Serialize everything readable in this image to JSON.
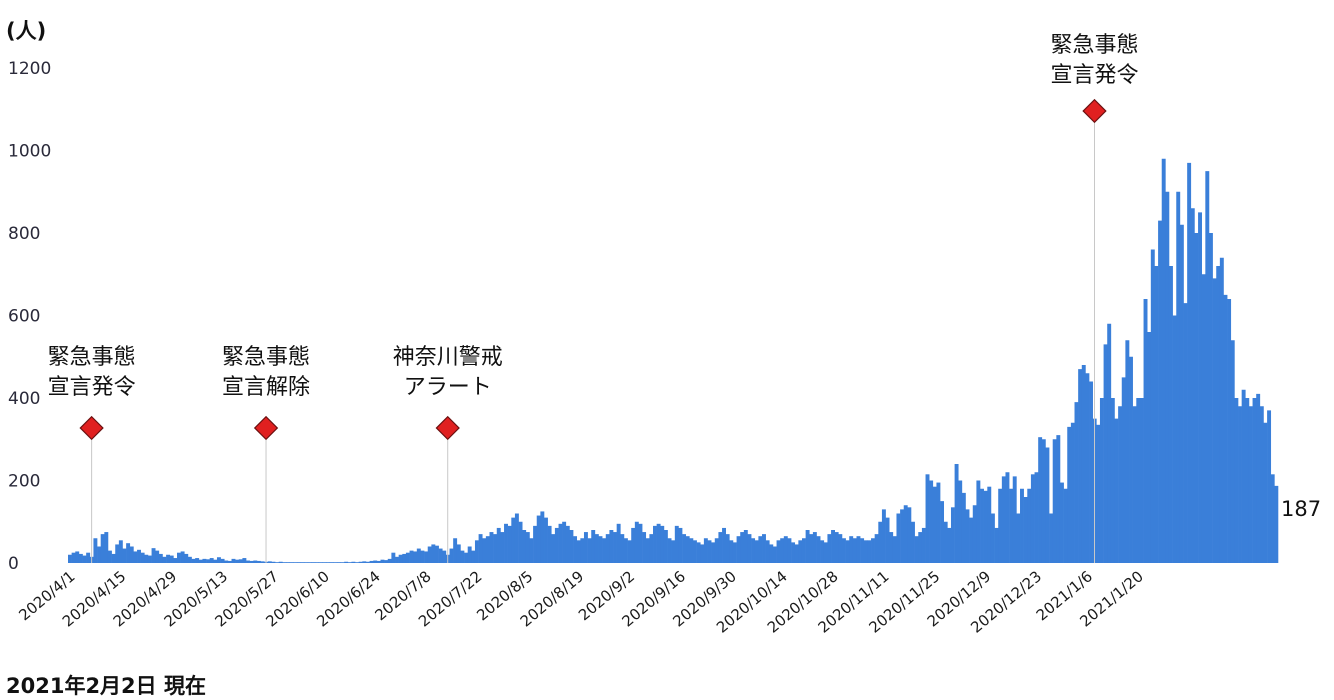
{
  "chart_data": {
    "type": "bar",
    "ylabel": "(人)",
    "ylim": [
      0,
      1200
    ],
    "yticks": [
      0,
      200,
      400,
      600,
      800,
      1000,
      1200
    ],
    "grid": false,
    "x_start": "2020/4/1",
    "x_end": "2021/2/2",
    "x_tick_labels": [
      "2020/4/1",
      "2020/4/15",
      "2020/4/29",
      "2020/5/13",
      "2020/5/27",
      "2020/6/10",
      "2020/6/24",
      "2020/7/8",
      "2020/7/22",
      "2020/8/5",
      "2020/8/19",
      "2020/9/2",
      "2020/9/16",
      "2020/9/30",
      "2020/10/14",
      "2020/10/28",
      "2020/11/11",
      "2020/11/25",
      "2020/12/9",
      "2020/12/23",
      "2021/1/6",
      "2021/1/20"
    ],
    "bar_color": "#3a7fd9",
    "marker_color": "#e02020",
    "values": [
      20,
      25,
      28,
      22,
      18,
      25,
      15,
      60,
      40,
      70,
      75,
      30,
      22,
      45,
      55,
      35,
      48,
      40,
      28,
      32,
      25,
      20,
      18,
      36,
      30,
      22,
      15,
      20,
      18,
      12,
      25,
      28,
      22,
      15,
      10,
      12,
      8,
      10,
      9,
      12,
      8,
      14,
      10,
      6,
      5,
      10,
      8,
      9,
      12,
      6,
      5,
      6,
      5,
      4,
      3,
      4,
      3,
      2,
      3,
      2,
      2,
      2,
      1,
      2,
      2,
      1,
      1,
      2,
      1,
      1,
      1,
      1,
      2,
      1,
      2,
      1,
      3,
      2,
      3,
      2,
      3,
      4,
      3,
      5,
      6,
      5,
      8,
      7,
      10,
      25,
      15,
      20,
      22,
      25,
      30,
      28,
      35,
      30,
      28,
      40,
      45,
      42,
      35,
      30,
      20,
      35,
      60,
      45,
      30,
      25,
      40,
      30,
      55,
      70,
      60,
      65,
      75,
      70,
      85,
      75,
      95,
      90,
      110,
      120,
      100,
      80,
      75,
      60,
      90,
      115,
      125,
      110,
      90,
      70,
      85,
      95,
      100,
      90,
      80,
      65,
      55,
      60,
      75,
      60,
      80,
      70,
      65,
      60,
      70,
      80,
      75,
      95,
      70,
      60,
      55,
      85,
      100,
      95,
      75,
      60,
      70,
      90,
      95,
      90,
      80,
      60,
      55,
      90,
      85,
      70,
      65,
      60,
      55,
      50,
      45,
      60,
      55,
      50,
      60,
      75,
      85,
      70,
      55,
      50,
      65,
      75,
      80,
      70,
      60,
      55,
      65,
      70,
      55,
      45,
      40,
      55,
      60,
      65,
      60,
      50,
      45,
      55,
      60,
      80,
      70,
      75,
      65,
      55,
      50,
      70,
      80,
      75,
      70,
      60,
      55,
      65,
      60,
      65,
      60,
      55,
      55,
      60,
      70,
      100,
      130,
      110,
      75,
      65,
      120,
      130,
      140,
      135,
      100,
      65,
      75,
      85,
      215,
      200,
      185,
      195,
      150,
      100,
      85,
      135,
      240,
      200,
      170,
      130,
      110,
      140,
      200,
      180,
      175,
      185,
      120,
      85,
      180,
      210,
      220,
      180,
      210,
      120,
      180,
      160,
      180,
      215,
      220,
      305,
      300,
      280,
      120,
      300,
      310,
      195,
      180,
      330,
      340,
      390,
      470,
      480,
      460,
      440,
      350,
      335,
      400,
      530,
      580,
      400,
      350,
      380,
      450,
      540,
      500,
      380,
      400,
      400,
      640,
      560,
      760,
      720,
      830,
      980,
      900,
      720,
      600,
      900,
      820,
      630,
      970,
      860,
      800,
      850,
      700,
      950,
      800,
      690,
      720,
      740,
      650,
      640,
      540,
      400,
      380,
      420,
      400,
      380,
      400,
      410,
      380,
      340,
      370,
      215,
      187
    ],
    "last_value_label": "187",
    "annotations": [
      {
        "date": "2020/4/7",
        "text": [
          "緊急事態",
          "宣言発令"
        ]
      },
      {
        "date": "2020/5/25",
        "text": [
          "緊急事態",
          "宣言解除"
        ]
      },
      {
        "date": "2020/7/14",
        "text": [
          "神奈川警戒",
          "アラート"
        ]
      },
      {
        "date": "2021/1/8",
        "text": [
          "緊急事態",
          "宣言発令"
        ]
      }
    ]
  },
  "footer": "2021年2月2日 現在"
}
